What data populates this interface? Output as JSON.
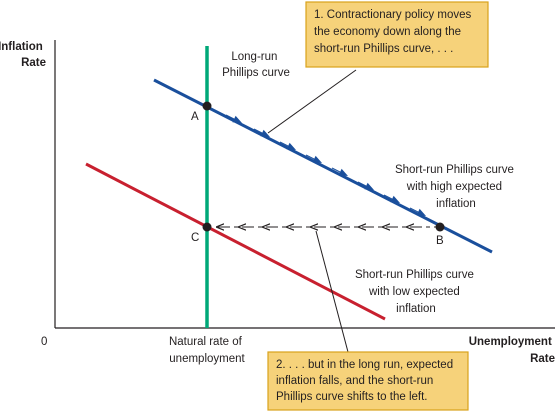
{
  "axes": {
    "y_label_lines": [
      "Inflation",
      "Rate"
    ],
    "x_label_lines": [
      "Unemployment",
      "Rate"
    ],
    "origin": "0",
    "natural_rate_lines": [
      "Natural rate of",
      "unemployment"
    ]
  },
  "curves": {
    "lrpc_lines": [
      "Long-run",
      "Phillips curve"
    ],
    "srpc_high_lines": [
      "Short-run Phillips curve",
      "with high expected",
      "inflation"
    ],
    "srpc_low_lines": [
      "Short-run Phillips curve",
      "with low expected",
      "inflation"
    ]
  },
  "points": {
    "A": "A",
    "B": "B",
    "C": "C"
  },
  "callouts": {
    "top_lines": [
      "1. Contractionary policy moves",
      "the economy down along the",
      "short-run Phillips curve, . . ."
    ],
    "bottom_lines": [
      "2. . . . but in the long run, expected",
      "inflation falls, and the short-run",
      "Phillips curve shifts to the left."
    ]
  },
  "colors": {
    "lrpc": "#00a878",
    "srpc_high": "#1a4f9c",
    "srpc_low": "#c8202f",
    "callout_fill": "#f6d27a",
    "callout_stroke": "#d9a21b",
    "axis": "#231f20"
  }
}
